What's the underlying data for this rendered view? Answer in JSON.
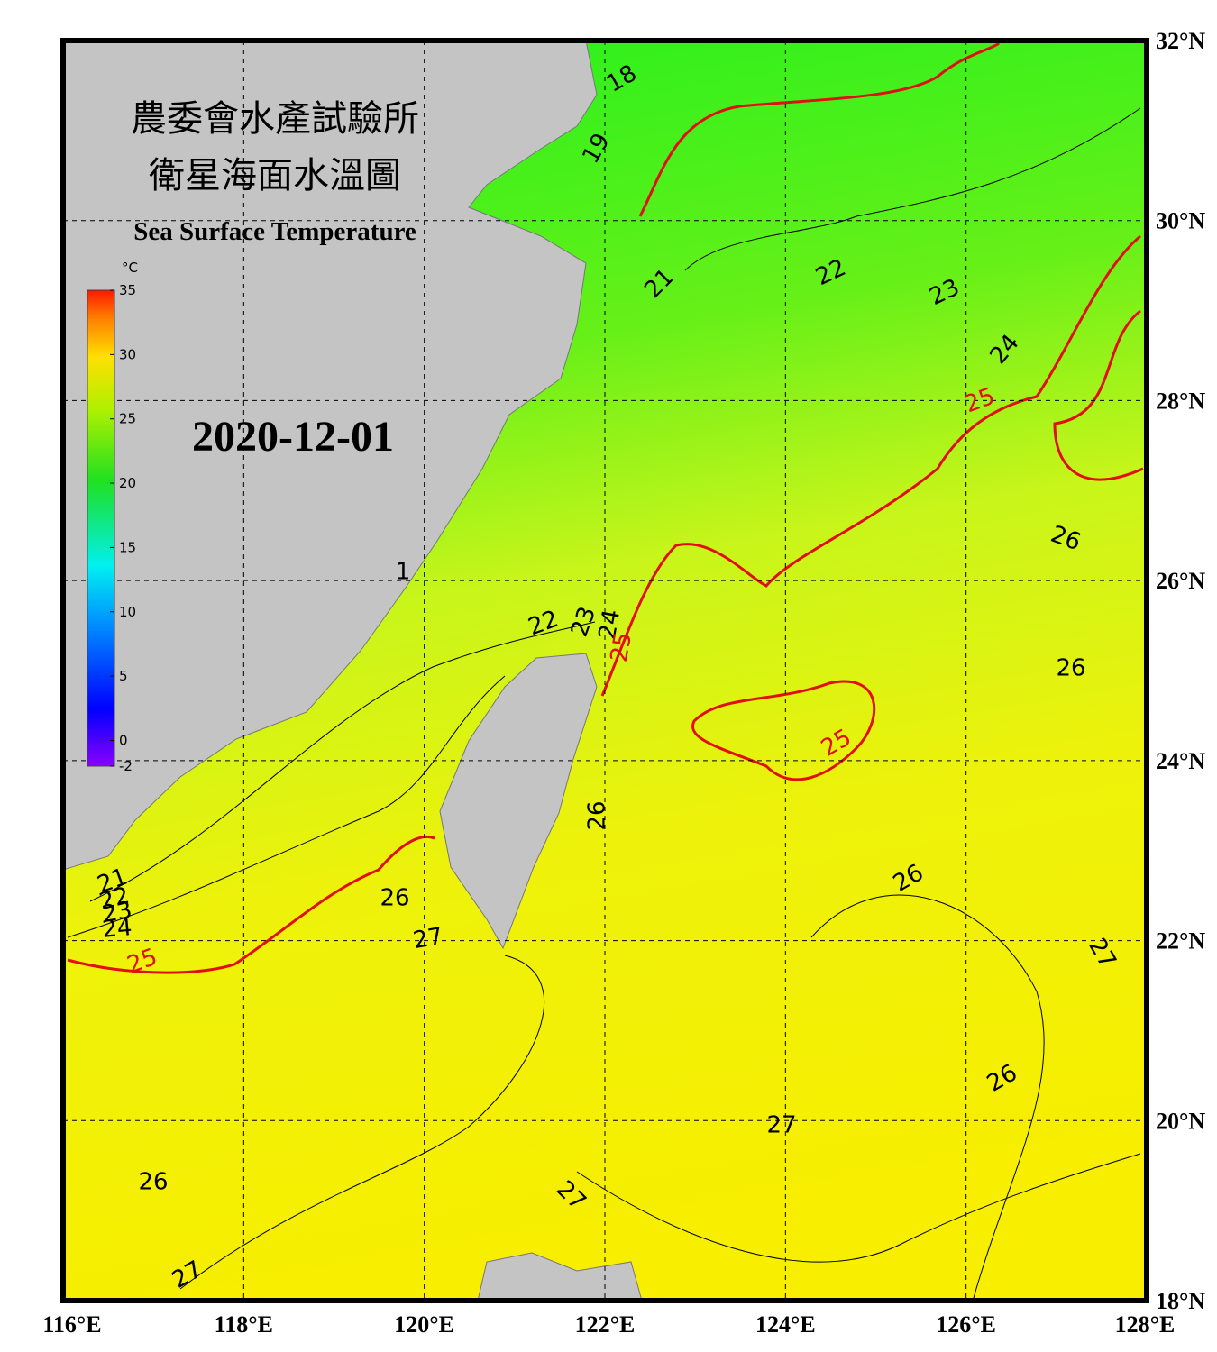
{
  "title_zh_1": "農委會水產試驗所",
  "title_zh_2": "衛星海面水溫圖",
  "title_en": "Sea Surface Temperature",
  "date": "2020-12-01",
  "colorbar": {
    "unit": "°C",
    "lim": [
      -2,
      35
    ],
    "ticks": [
      -2,
      0,
      5,
      10,
      15,
      20,
      25,
      30,
      35
    ]
  },
  "lon_lim": [
    116,
    128
  ],
  "lat_lim": [
    18,
    32
  ],
  "lon_ticks": [
    {
      "value": 116,
      "label": "116°E"
    },
    {
      "value": 118,
      "label": "118°E"
    },
    {
      "value": 120,
      "label": "120°E"
    },
    {
      "value": 122,
      "label": "122°E"
    },
    {
      "value": 124,
      "label": "124°E"
    },
    {
      "value": 126,
      "label": "126°E"
    },
    {
      "value": 128,
      "label": "128°E"
    }
  ],
  "lat_ticks": [
    {
      "value": 18,
      "label": "18°N"
    },
    {
      "value": 20,
      "label": "20°N"
    },
    {
      "value": 22,
      "label": "22°N"
    },
    {
      "value": 24,
      "label": "24°N"
    },
    {
      "value": 26,
      "label": "26°N"
    },
    {
      "value": 28,
      "label": "28°N"
    },
    {
      "value": 30,
      "label": "30°N"
    },
    {
      "value": 32,
      "label": "32°N"
    }
  ],
  "highlight_isotherm": 25,
  "highlight_color": "#e01010",
  "isotherm_labels": [
    18,
    19,
    21,
    22,
    23,
    24,
    25,
    26,
    1,
    22,
    23,
    24,
    25,
    26,
    25,
    26,
    26,
    21,
    22,
    23,
    24,
    26,
    27,
    25,
    27,
    26,
    27,
    26,
    27,
    27
  ]
}
